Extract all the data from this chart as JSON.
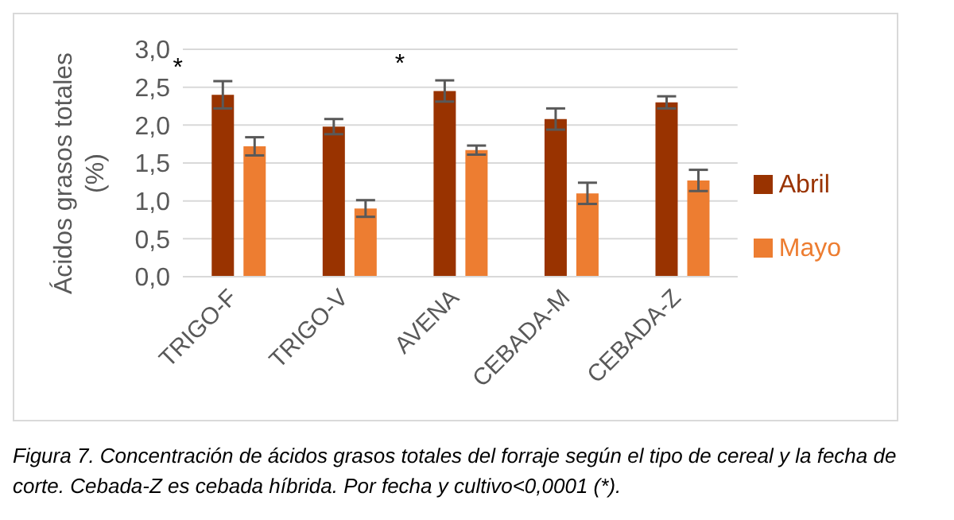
{
  "chart_data": {
    "type": "bar",
    "ylabel": "Ácidos grasos totales (%)",
    "categories": [
      "TRIGO-F",
      "TRIGO-V",
      "AVENA",
      "CEBADA-M",
      "CEBADA-Z"
    ],
    "series": [
      {
        "name": "Abril",
        "color": "#993300",
        "values": [
          2.4,
          1.98,
          2.45,
          2.08,
          2.3
        ],
        "errors": [
          0.18,
          0.1,
          0.14,
          0.14,
          0.08
        ]
      },
      {
        "name": "Mayo",
        "color": "#ed7d31",
        "values": [
          1.72,
          0.9,
          1.67,
          1.1,
          1.27
        ],
        "errors": [
          0.12,
          0.11,
          0.06,
          0.14,
          0.14
        ]
      }
    ],
    "ylim": [
      0,
      3
    ],
    "yticks": [
      {
        "value": 0,
        "label": "0,0"
      },
      {
        "value": 0.5,
        "label": "0,5"
      },
      {
        "value": 1,
        "label": "1,0"
      },
      {
        "value": 1.5,
        "label": "1,5"
      },
      {
        "value": 2,
        "label": "2,0"
      },
      {
        "value": 2.5,
        "label": "2,5"
      },
      {
        "value": 3,
        "label": "3,0"
      }
    ],
    "grid": "y",
    "legend": "right",
    "annotations": [
      {
        "text": "*",
        "x": "TRIGO-F",
        "y": 2.4
      },
      {
        "text": "*",
        "x": "AVENA",
        "y": 2.45
      },
      "Figura 7. Concentración de ácidos grasos totales del forraje según el tipo de cereal y la fecha de corte. Cebada-Z es cebada híbrida. Por fecha y cultivo<0,0001 (*)."
    ]
  }
}
